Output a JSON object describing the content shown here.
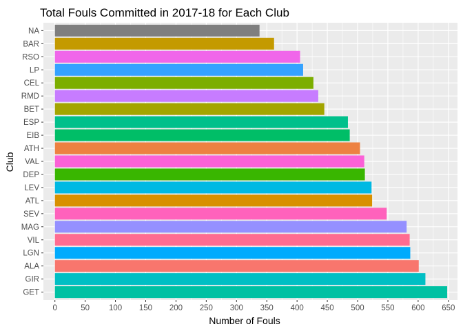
{
  "chart_data": {
    "type": "bar",
    "orientation": "horizontal",
    "title": "Total Fouls Committed in 2017-18 for Each Club",
    "xlabel": "Number of Fouls",
    "ylabel": "Club",
    "xlim": [
      -19,
      665
    ],
    "x_ticks": [
      0,
      50,
      100,
      150,
      200,
      250,
      300,
      350,
      400,
      450,
      500,
      550,
      600,
      650
    ],
    "grid": true,
    "background": "#ebebeb",
    "categories": [
      "NA",
      "BAR",
      "RSO",
      "LP",
      "CEL",
      "RMD",
      "BET",
      "ESP",
      "EIB",
      "ATH",
      "VAL",
      "DEP",
      "LEV",
      "ATL",
      "SEV",
      "MAG",
      "VIL",
      "LGN",
      "ALA",
      "GIR",
      "GET"
    ],
    "values": [
      338,
      362,
      405,
      410,
      427,
      435,
      445,
      484,
      487,
      504,
      511,
      512,
      523,
      524,
      548,
      581,
      586,
      587,
      601,
      612,
      648
    ],
    "colors": [
      "#7f7f7f",
      "#c49a00",
      "#f066ea",
      "#35a2ff",
      "#7cae00",
      "#c77cff",
      "#a3a500",
      "#00c08b",
      "#00be67",
      "#ed8141",
      "#fb61d7",
      "#39b600",
      "#00b9e3",
      "#d89000",
      "#ff62bc",
      "#9590ff",
      "#ff6c91",
      "#00abfd",
      "#f8766d",
      "#00bfc4",
      "#00c1a3"
    ]
  }
}
